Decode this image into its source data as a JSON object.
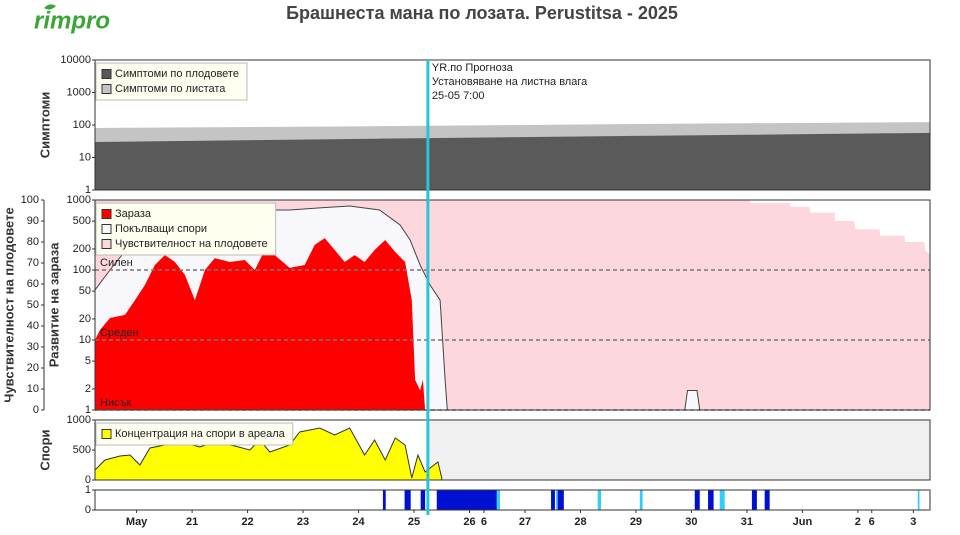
{
  "page": {
    "logo": "rimpro",
    "title": "Брашнеста мана по лозата.  Perustitsa - 2025"
  },
  "x_axis": {
    "xlim": [
      -0.25,
      14.8
    ],
    "xticks": [
      {
        "value": 0.5,
        "label": "May"
      },
      {
        "value": 1.5,
        "label": "21"
      },
      {
        "value": 2.5,
        "label": "22"
      },
      {
        "value": 3.5,
        "label": "23"
      },
      {
        "value": 4.5,
        "label": "24"
      },
      {
        "value": 5.5,
        "label": "25"
      },
      {
        "value": 6.5,
        "label": "26"
      },
      {
        "value": 6.76,
        "label": "6"
      },
      {
        "value": 7.5,
        "label": "27"
      },
      {
        "value": 8.5,
        "label": "28"
      },
      {
        "value": 9.5,
        "label": "29"
      },
      {
        "value": 10.5,
        "label": "30"
      },
      {
        "value": 11.5,
        "label": "31"
      },
      {
        "value": 12.5,
        "label": "Jun"
      },
      {
        "value": 13.5,
        "label": "2"
      },
      {
        "value": 13.75,
        "label": "6"
      },
      {
        "value": 14.5,
        "label": "3"
      }
    ],
    "now_x": 5.75,
    "now_color": "#29c5d6",
    "annotation": [
      "YR.по Прогноза",
      "Установяване на листна влага",
      "25-05 7:00"
    ]
  },
  "chart_data": [
    {
      "type": "area",
      "ylabel": "Симптоми",
      "log_y": true,
      "ylim": [
        1,
        10000
      ],
      "yticks": [
        1,
        10,
        100,
        1000,
        10000
      ],
      "legend": "upper left",
      "series": [
        {
          "name": "Симптоми по плодовете",
          "color": "#5a5a5a",
          "x": [
            -0.25,
            4.8,
            9.8,
            14.8
          ],
          "values": [
            30,
            38,
            47,
            57
          ]
        },
        {
          "name": "Симптоми по листата",
          "color": "#c4c4c4",
          "x": [
            -0.25,
            4.8,
            9.8,
            14.8
          ],
          "values": [
            81,
            92,
            108,
            123
          ]
        }
      ]
    },
    {
      "type": "area",
      "ylabel": "Развитие на зараза",
      "y2label": "Чувствителност на плодовете",
      "log_y": true,
      "ylim": [
        1,
        1000
      ],
      "yticks": [
        1,
        2,
        5,
        10,
        20,
        50,
        100,
        200,
        500,
        1000
      ],
      "y2lim": [
        0,
        100
      ],
      "y2ticks": [
        0,
        10,
        20,
        30,
        40,
        50,
        60,
        70,
        80,
        90,
        100
      ],
      "legend": "upper left",
      "thresholds": [
        {
          "label": "Силен",
          "value": 100
        },
        {
          "label": "Среден",
          "value": 10
        },
        {
          "label": "Нисък",
          "value": 1
        }
      ],
      "series": [
        {
          "name": "Зараза",
          "color": "#ff0000",
          "x": [
            -0.25,
            -0.16,
            0.02,
            0.29,
            0.47,
            0.65,
            0.83,
            1.01,
            1.19,
            1.37,
            1.55,
            1.73,
            1.91,
            2.18,
            2.45,
            2.63,
            2.81,
            2.99,
            3.26,
            3.53,
            3.71,
            3.89,
            4.07,
            4.25,
            4.43,
            4.61,
            4.79,
            4.98,
            5.16,
            5.34,
            5.46,
            5.52,
            5.61,
            5.66,
            5.7
          ],
          "values": [
            10,
            13.9,
            20.6,
            22.8,
            37,
            61,
            118,
            163,
            130,
            85,
            37,
            100,
            148,
            130,
            139,
            100,
            193,
            163,
            107,
            118,
            228,
            286,
            193,
            130,
            163,
            130,
            193,
            268,
            181,
            130,
            37,
            2.7,
            1.9,
            2.7,
            1
          ]
        },
        {
          "name": "Покълващи спори",
          "color": "#f8f8fc",
          "edge_color": "#444444",
          "x": [
            -0.25,
            0.02,
            0.38,
            0.74,
            1.19,
            1.64,
            2.18,
            2.72,
            3.26,
            3.8,
            4.34,
            4.88,
            5.25,
            5.43,
            5.61,
            5.79,
            5.97,
            6.06,
            6.1,
            10.38,
            10.43,
            10.6,
            10.65,
            14.8
          ],
          "values": [
            52,
            100,
            228,
            372,
            550,
            610,
            670,
            720,
            720,
            770,
            820,
            720,
            440,
            268,
            118,
            61,
            37,
            2.7,
            1,
            1,
            1.9,
            1.9,
            1,
            1
          ]
        },
        {
          "name": "Чувствителност на плодовете",
          "color": "#fcd7dd",
          "axis": "y2",
          "x": [
            -0.25,
            11.55,
            11.56,
            12.27,
            12.28,
            12.63,
            12.64,
            13.08,
            13.09,
            13.44,
            13.45,
            13.89,
            13.9,
            14.34,
            14.35,
            14.7,
            14.71,
            14.8
          ],
          "values": [
            100,
            100,
            98.6,
            98.6,
            96.7,
            96.7,
            94,
            94,
            90,
            90,
            86,
            86,
            83,
            83,
            80,
            80,
            76,
            74
          ]
        }
      ]
    },
    {
      "type": "area",
      "ylabel": "Спори",
      "log_y": false,
      "ylim": [
        0,
        1000
      ],
      "yticks": [
        0,
        500,
        1000
      ],
      "legend": "upper left",
      "series": [
        {
          "name": "Концентрация на спори в ареала",
          "color": "#ffff00",
          "edge_color": "#333333",
          "x": [
            -0.25,
            -0.07,
            0.2,
            0.38,
            0.56,
            0.74,
            1.01,
            1.37,
            1.64,
            1.91,
            2.27,
            2.54,
            2.72,
            2.9,
            3.26,
            3.44,
            3.8,
            4.07,
            4.34,
            4.61,
            4.79,
            4.98,
            5.16,
            5.34,
            5.46,
            5.57,
            5.7,
            5.79,
            5.93,
            6.0
          ],
          "values": [
            167,
            333,
            400,
            417,
            250,
            533,
            583,
            617,
            550,
            633,
            567,
            500,
            667,
            467,
            583,
            800,
            867,
            750,
            867,
            417,
            667,
            333,
            700,
            583,
            33,
            417,
            133,
            200,
            300,
            33
          ]
        }
      ]
    },
    {
      "type": "bar",
      "log_y": false,
      "ylim": [
        0,
        1
      ],
      "yticks": [
        0,
        1
      ],
      "series": [
        {
          "color": "#0010d0",
          "x_start": [
            4.94,
            5.33,
            5.62,
            5.91,
            7.97,
            8.09,
            10.56,
            10.8,
            11.59,
            11.82
          ],
          "x_end": [
            4.99,
            5.44,
            5.7,
            6.99,
            8.04,
            8.2,
            10.65,
            10.9,
            11.68,
            11.91
          ],
          "values": [
            1,
            1,
            1,
            1,
            1,
            1,
            1,
            1,
            1,
            1
          ]
        },
        {
          "color": "#33ccff",
          "x_start": [
            6.99,
            8.06,
            8.81,
            9.57,
            11.01,
            14.58
          ],
          "x_end": [
            7.05,
            8.09,
            8.87,
            9.62,
            11.1,
            14.61
          ],
          "values": [
            1,
            1,
            1,
            1,
            1,
            1
          ]
        }
      ]
    }
  ]
}
